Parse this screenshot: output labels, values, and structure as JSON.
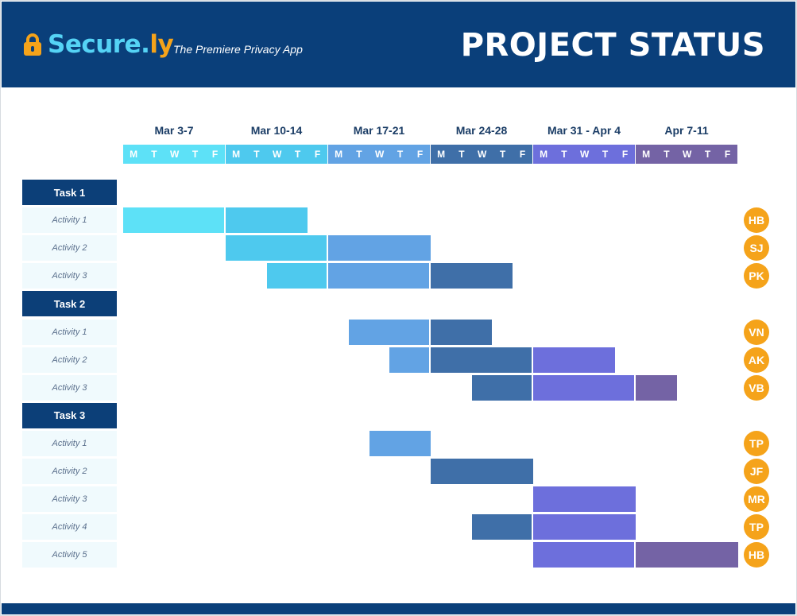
{
  "header": {
    "brand_main": "Secure.",
    "brand_suffix": "ly",
    "tagline": "The Premiere Privacy App",
    "title": "PROJECT STATUS",
    "background": "#0a3f7a",
    "brand_color": "#55d3f5",
    "accent_color": "#f5a31a"
  },
  "chart_data": {
    "type": "gantt",
    "title": "PROJECT STATUS",
    "weeks": [
      {
        "label": "Mar 3-7",
        "color": "#5de1f7"
      },
      {
        "label": "Mar 10-14",
        "color": "#4ec9ee"
      },
      {
        "label": "Mar 17-21",
        "color": "#62a3e4"
      },
      {
        "label": "Mar 24-28",
        "color": "#3f6fa8"
      },
      {
        "label": "Mar 31 - Apr 4",
        "color": "#6d6fdc"
      },
      {
        "label": "Apr 7-11",
        "color": "#7463a5"
      }
    ],
    "days": [
      "M",
      "T",
      "W",
      "T",
      "F"
    ],
    "groups": [
      {
        "task": "Task 1",
        "activities": [
          {
            "label": "Activity 1",
            "assignee": "HB",
            "start": 0,
            "end": 9
          },
          {
            "label": "Activity 2",
            "assignee": "SJ",
            "start": 5,
            "end": 15
          },
          {
            "label": "Activity 3",
            "assignee": "PK",
            "start": 7,
            "end": 19
          }
        ]
      },
      {
        "task": "Task 2",
        "activities": [
          {
            "label": "Activity 1",
            "assignee": "VN",
            "start": 11,
            "end": 18
          },
          {
            "label": "Activity 2",
            "assignee": "AK",
            "start": 13,
            "end": 24
          },
          {
            "label": "Activity 3",
            "assignee": "VB",
            "start": 17,
            "end": 27
          }
        ]
      },
      {
        "task": "Task 3",
        "activities": [
          {
            "label": "Activity 1",
            "assignee": "TP",
            "start": 12,
            "end": 15
          },
          {
            "label": "Activity 2",
            "assignee": "JF",
            "start": 15,
            "end": 20
          },
          {
            "label": "Activity 3",
            "assignee": "MR",
            "start": 20,
            "end": 25
          },
          {
            "label": "Activity 4",
            "assignee": "TP",
            "start": 17,
            "end": 25
          },
          {
            "label": "Activity 5",
            "assignee": "HB",
            "start": 20,
            "end": 30
          }
        ]
      }
    ]
  }
}
